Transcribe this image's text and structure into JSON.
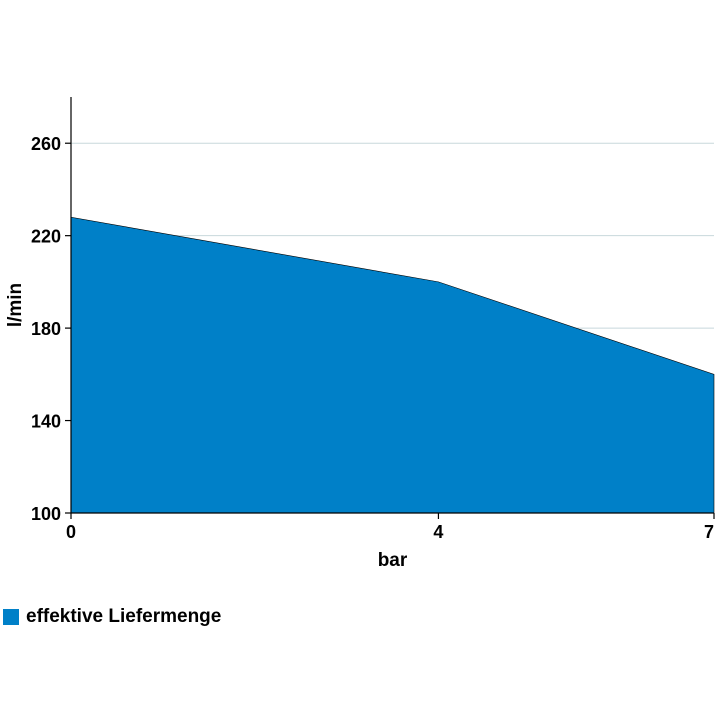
{
  "chart_data": {
    "type": "area",
    "x": [
      0,
      4,
      7
    ],
    "series": [
      {
        "name": "effektive Liefermenge",
        "values": [
          228,
          200,
          160
        ],
        "color": "#0080c8"
      }
    ],
    "xlabel": "bar",
    "ylabel": "l/min",
    "xlim": [
      0,
      7
    ],
    "ylim": [
      100,
      280
    ],
    "xticks": [
      0,
      4,
      7
    ],
    "yticks": [
      100,
      140,
      180,
      220,
      260
    ],
    "grid": "horizontal",
    "legend_position": "bottom-left",
    "gridline_color": "#c8d8dc",
    "axis_color": "#000000"
  }
}
